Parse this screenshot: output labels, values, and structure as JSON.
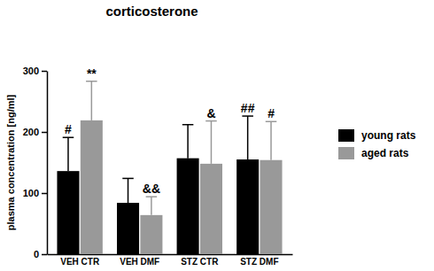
{
  "chart_data": {
    "type": "bar",
    "title": "corticosterone",
    "y_label": "plasma concentration [ng/ml]",
    "categories": [
      "VEH CTR",
      "VEH DMF",
      "STZ CTR",
      "STZ DMF"
    ],
    "series": [
      {
        "name": "young rats",
        "color": "#000000",
        "values": [
          136,
          84,
          157,
          155
        ],
        "errors": [
          55,
          40,
          55,
          71
        ],
        "annotations": [
          "#",
          null,
          null,
          "##"
        ]
      },
      {
        "name": "aged rats",
        "color": "#999999",
        "values": [
          219,
          64,
          148,
          154
        ],
        "errors": [
          64,
          30,
          70,
          63
        ],
        "annotations": [
          "**",
          "&&",
          "&",
          "#"
        ]
      }
    ],
    "ylim": [
      0,
      300
    ],
    "yticks": [
      0,
      100,
      200,
      300
    ],
    "grid": false,
    "legend": "right"
  }
}
